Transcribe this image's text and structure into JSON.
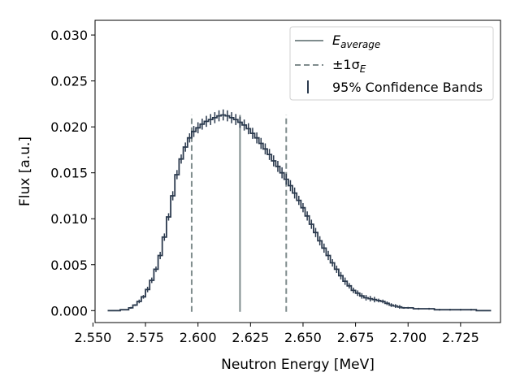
{
  "chart_data": {
    "type": "line",
    "xlabel": "Neutron Energy [MeV]",
    "ylabel": "Flux [a.u.]",
    "xlim": [
      2.551,
      2.744
    ],
    "ylim": [
      -0.0013,
      0.0316
    ],
    "x_ticks": [
      2.55,
      2.575,
      2.6,
      2.625,
      2.65,
      2.675,
      2.7,
      2.725
    ],
    "x_tick_labels": [
      "2.550",
      "2.575",
      "2.600",
      "2.625",
      "2.650",
      "2.675",
      "2.700",
      "2.725"
    ],
    "y_ticks": [
      0.0,
      0.005,
      0.01,
      0.015,
      0.02,
      0.025,
      0.03
    ],
    "y_tick_labels": [
      "0.000",
      "0.005",
      "0.010",
      "0.015",
      "0.020",
      "0.025",
      "0.030"
    ],
    "grid": false,
    "legend_position": "top-right",
    "colors": {
      "spectrum": "#2b3a4e",
      "reference_lines": "#7f8c8d"
    },
    "spectrum": {
      "x": [
        2.558,
        2.56,
        2.562,
        2.564,
        2.566,
        2.568,
        2.57,
        2.572,
        2.574,
        2.576,
        2.578,
        2.58,
        2.582,
        2.584,
        2.586,
        2.588,
        2.59,
        2.592,
        2.594,
        2.596,
        2.598,
        2.6,
        2.602,
        2.604,
        2.606,
        2.608,
        2.61,
        2.612,
        2.614,
        2.616,
        2.618,
        2.62,
        2.622,
        2.624,
        2.626,
        2.628,
        2.63,
        2.632,
        2.634,
        2.636,
        2.638,
        2.64,
        2.642,
        2.644,
        2.646,
        2.648,
        2.65,
        2.652,
        2.654,
        2.656,
        2.658,
        2.66,
        2.662,
        2.664,
        2.666,
        2.668,
        2.67,
        2.672,
        2.674,
        2.676,
        2.678,
        2.68,
        2.682,
        2.684,
        2.686,
        2.688,
        2.69,
        2.692,
        2.694,
        2.696,
        2.698,
        2.7,
        2.705,
        2.71,
        2.715,
        2.72,
        2.725,
        2.73,
        2.735,
        2.738
      ],
      "y": [
        0.0,
        0.0,
        0.0,
        0.0001,
        0.0001,
        0.0003,
        0.0006,
        0.001,
        0.0015,
        0.0023,
        0.0033,
        0.0045,
        0.006,
        0.008,
        0.0102,
        0.0125,
        0.0148,
        0.0165,
        0.0178,
        0.0188,
        0.0195,
        0.0199,
        0.0203,
        0.0206,
        0.0208,
        0.021,
        0.0212,
        0.0213,
        0.0212,
        0.021,
        0.0208,
        0.0205,
        0.0202,
        0.0198,
        0.0193,
        0.0188,
        0.0182,
        0.0176,
        0.017,
        0.0163,
        0.0157,
        0.015,
        0.0143,
        0.0136,
        0.0128,
        0.012,
        0.0112,
        0.0103,
        0.0094,
        0.0085,
        0.0076,
        0.0068,
        0.006,
        0.0052,
        0.0045,
        0.0038,
        0.0032,
        0.0027,
        0.0022,
        0.0019,
        0.0016,
        0.0014,
        0.0013,
        0.0012,
        0.0011,
        0.001,
        0.0008,
        0.0006,
        0.0005,
        0.0004,
        0.0003,
        0.0003,
        0.0002,
        0.0002,
        0.0001,
        0.0001,
        0.0001,
        0.0001,
        0.0,
        0.0
      ],
      "err": [
        0.0,
        0.0,
        0.0,
        0.0,
        0.0,
        0.0001,
        0.0001,
        0.0002,
        0.0002,
        0.0003,
        0.0003,
        0.0003,
        0.0004,
        0.0004,
        0.0004,
        0.0005,
        0.0005,
        0.0005,
        0.0005,
        0.0005,
        0.0006,
        0.0006,
        0.0006,
        0.0006,
        0.0006,
        0.0006,
        0.0006,
        0.0006,
        0.0006,
        0.0006,
        0.0006,
        0.0006,
        0.0006,
        0.0006,
        0.0006,
        0.0006,
        0.0006,
        0.0006,
        0.0006,
        0.0006,
        0.0006,
        0.0006,
        0.0006,
        0.0006,
        0.0006,
        0.0005,
        0.0005,
        0.0005,
        0.0005,
        0.0005,
        0.0005,
        0.0005,
        0.0005,
        0.0004,
        0.0004,
        0.0004,
        0.0004,
        0.0003,
        0.0003,
        0.0003,
        0.0003,
        0.0003,
        0.0003,
        0.0003,
        0.0002,
        0.0002,
        0.0002,
        0.0002,
        0.0002,
        0.0002,
        0.0001,
        0.0001,
        0.0001,
        0.0001,
        0.0001,
        0.0001,
        0.0001,
        0.0001,
        0.0,
        0.0
      ]
    },
    "average_energy": 2.62,
    "average_line_top": 0.0213,
    "sigma_energies": [
      2.597,
      2.642
    ],
    "sigma_line_top": 0.0213,
    "legend": [
      {
        "label": "E",
        "subscript": "average",
        "style": "solid"
      },
      {
        "label": "±1σ",
        "subscript": "E",
        "style": "dashed"
      },
      {
        "label": "95% Confidence Bands",
        "style": "errorbar"
      }
    ]
  }
}
